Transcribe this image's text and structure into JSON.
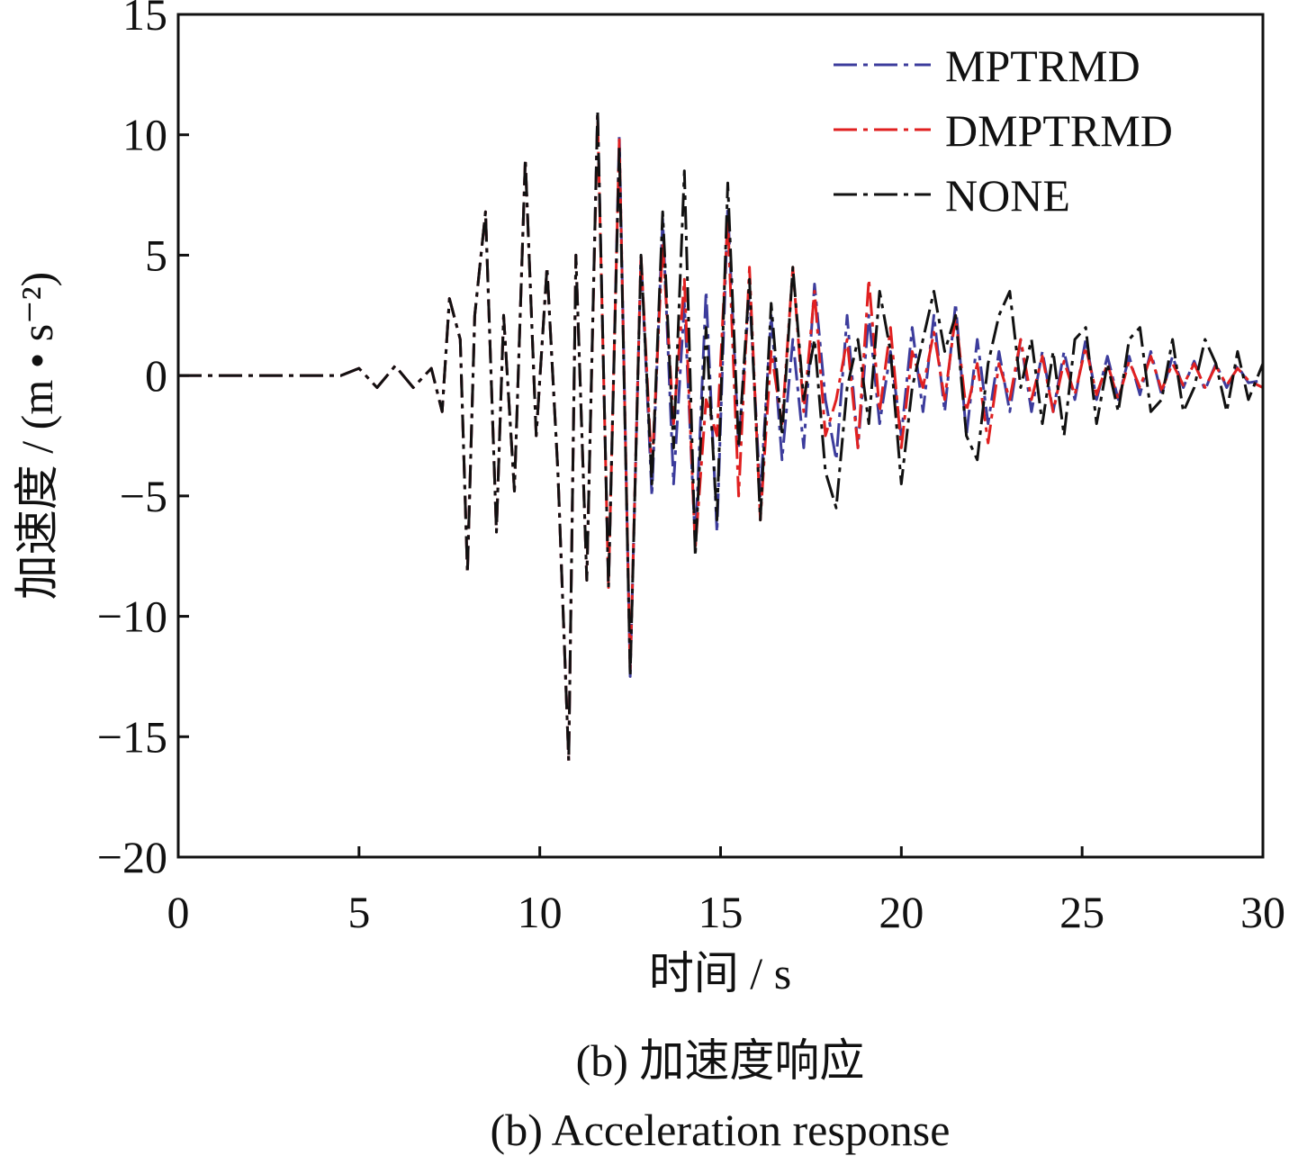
{
  "chart_data": {
    "type": "line",
    "xlabel": "时间 / s",
    "ylabel": "加速度 / (m • s⁻²)",
    "xlim": [
      0,
      30
    ],
    "ylim": [
      -20,
      15
    ],
    "xticks": [
      0,
      5,
      10,
      15,
      20,
      25,
      30
    ],
    "yticks": [
      15,
      10,
      5,
      0,
      -5,
      -10,
      -15,
      -20
    ],
    "xtick_labels": [
      "0",
      "5",
      "10",
      "15",
      "20",
      "25",
      "30"
    ],
    "ytick_labels": [
      "15",
      "10",
      "5",
      "0",
      "−5",
      "−10",
      "−15",
      "−20"
    ],
    "grid": false,
    "legend_position": "top-right",
    "series": [
      {
        "name": "MPTRMD",
        "color": "#3c3c9c",
        "x": [
          0,
          4.5,
          5.0,
          5.5,
          6.0,
          6.5,
          7.0,
          7.3,
          7.5,
          7.8,
          8.0,
          8.2,
          8.5,
          8.8,
          9.0,
          9.3,
          9.6,
          9.9,
          10.2,
          10.5,
          10.8,
          11.0,
          11.3,
          11.6,
          11.9,
          12.2,
          12.5,
          12.8,
          13.1,
          13.4,
          13.7,
          14.0,
          14.3,
          14.6,
          14.9,
          15.2,
          15.5,
          15.8,
          16.1,
          16.4,
          16.7,
          17.0,
          17.3,
          17.6,
          17.9,
          18.2,
          18.5,
          18.8,
          19.1,
          19.4,
          19.7,
          20.0,
          20.3,
          20.6,
          20.9,
          21.2,
          21.5,
          21.8,
          22.1,
          22.4,
          22.7,
          23.0,
          23.3,
          23.6,
          23.9,
          24.2,
          24.5,
          24.8,
          25.1,
          25.4,
          25.7,
          26.0,
          26.3,
          26.6,
          26.9,
          27.2,
          27.5,
          27.8,
          28.1,
          28.4,
          28.7,
          29.0,
          29.3,
          29.6,
          30.0
        ],
        "y": [
          0,
          0,
          0.3,
          -0.5,
          0.4,
          -0.5,
          0.3,
          -1.5,
          3.2,
          1.5,
          -8.2,
          2.5,
          6.8,
          -6.5,
          2.5,
          -4.8,
          9.0,
          -2.5,
          4.5,
          -4.0,
          -16.0,
          5.0,
          -8.5,
          11.0,
          -8.8,
          10.0,
          -12.5,
          5.0,
          -5.0,
          6.5,
          -4.5,
          3.0,
          -7.0,
          3.5,
          -6.5,
          7.0,
          -3.0,
          3.5,
          -5.0,
          2.5,
          -3.5,
          1.5,
          -3.0,
          3.8,
          -1.0,
          -3.5,
          2.5,
          -3.0,
          2.5,
          -2.0,
          1.0,
          -2.5,
          2.0,
          -1.5,
          2.5,
          -1.5,
          3.0,
          -2.5,
          1.5,
          -2.0,
          1.0,
          -1.5,
          1.5,
          -1.5,
          1.0,
          -1.5,
          1.0,
          -1.0,
          1.5,
          -1.0,
          0.8,
          -1.0,
          0.8,
          -0.8,
          1.0,
          -0.8,
          0.8,
          -0.5,
          0.6,
          -0.6,
          0.5,
          -0.5,
          0.4,
          -0.3,
          -0.2
        ]
      },
      {
        "name": "DMPTRMD",
        "color": "#e02020",
        "x": [
          0,
          4.5,
          5.0,
          5.5,
          6.0,
          6.5,
          7.0,
          7.3,
          7.5,
          7.8,
          8.0,
          8.2,
          8.5,
          8.8,
          9.0,
          9.3,
          9.6,
          9.9,
          10.2,
          10.5,
          10.8,
          11.0,
          11.3,
          11.6,
          11.9,
          12.2,
          12.5,
          12.8,
          13.1,
          13.4,
          13.7,
          14.0,
          14.3,
          14.6,
          14.9,
          15.2,
          15.5,
          15.8,
          16.1,
          16.4,
          16.7,
          17.0,
          17.3,
          17.6,
          17.9,
          18.2,
          18.5,
          18.8,
          19.1,
          19.4,
          19.7,
          20.0,
          20.3,
          20.6,
          20.9,
          21.2,
          21.5,
          21.8,
          22.1,
          22.4,
          22.7,
          23.0,
          23.3,
          23.6,
          23.9,
          24.2,
          24.5,
          24.8,
          25.1,
          25.4,
          25.7,
          26.0,
          26.3,
          26.6,
          26.9,
          27.2,
          27.5,
          27.8,
          28.1,
          28.4,
          28.7,
          29.0,
          29.3,
          29.6,
          30.0
        ],
        "y": [
          0,
          0,
          0.3,
          -0.5,
          0.4,
          -0.5,
          0.3,
          -1.5,
          3.2,
          1.5,
          -8.2,
          2.5,
          6.8,
          -6.5,
          2.5,
          -4.8,
          9.0,
          -2.5,
          4.5,
          -4.0,
          -16.0,
          5.0,
          -8.5,
          10.8,
          -8.8,
          9.8,
          -12.3,
          5.0,
          -4.0,
          5.5,
          -2.0,
          4.0,
          -7.2,
          -1.0,
          -2.5,
          6.5,
          -5.0,
          4.5,
          -6.0,
          1.0,
          -2.0,
          4.5,
          -1.5,
          3.5,
          -2.5,
          -1.0,
          1.5,
          -3.0,
          4.0,
          -1.5,
          2.0,
          -3.0,
          1.0,
          -0.5,
          1.8,
          -1.0,
          2.5,
          -1.5,
          0.5,
          -2.8,
          0.5,
          -1.0,
          1.5,
          -1.0,
          0.8,
          -1.5,
          0.6,
          -0.8,
          1.2,
          -0.8,
          0.5,
          -1.0,
          0.6,
          -0.5,
          0.8,
          -0.6,
          0.5,
          -0.4,
          0.5,
          -0.5,
          0.4,
          -0.4,
          0.3,
          -0.2,
          -0.5
        ]
      },
      {
        "name": "NONE",
        "color": "#111111",
        "x": [
          0,
          4.5,
          5.0,
          5.5,
          6.0,
          6.5,
          7.0,
          7.3,
          7.5,
          7.8,
          8.0,
          8.2,
          8.5,
          8.8,
          9.0,
          9.3,
          9.6,
          9.9,
          10.2,
          10.5,
          10.8,
          11.0,
          11.3,
          11.6,
          11.9,
          12.2,
          12.5,
          12.8,
          13.1,
          13.4,
          13.7,
          14.0,
          14.3,
          14.6,
          14.9,
          15.2,
          15.5,
          15.8,
          16.1,
          16.4,
          16.7,
          17.0,
          17.3,
          17.6,
          17.9,
          18.2,
          18.5,
          18.8,
          19.1,
          19.4,
          19.7,
          20.0,
          20.3,
          20.6,
          20.9,
          21.2,
          21.5,
          21.8,
          22.1,
          22.4,
          22.7,
          23.0,
          23.3,
          23.6,
          23.9,
          24.2,
          24.5,
          24.8,
          25.1,
          25.4,
          25.7,
          26.0,
          26.3,
          26.6,
          26.9,
          27.2,
          27.5,
          27.8,
          28.1,
          28.4,
          28.7,
          29.0,
          29.3,
          29.6,
          30.0
        ],
        "y": [
          0,
          0,
          0.3,
          -0.5,
          0.4,
          -0.5,
          0.3,
          -1.5,
          3.2,
          1.5,
          -8.2,
          2.5,
          6.8,
          -6.5,
          2.5,
          -4.8,
          9.0,
          -2.5,
          4.5,
          -4.0,
          -16.0,
          5.0,
          -8.5,
          11.0,
          -8.8,
          9.5,
          -12.5,
          5.0,
          -4.5,
          6.8,
          -3.0,
          8.5,
          -7.5,
          2.0,
          -6.0,
          8.0,
          -3.0,
          4.0,
          -6.0,
          3.0,
          -2.5,
          4.5,
          -1.0,
          1.5,
          -4.0,
          -5.5,
          -0.5,
          1.5,
          -2.0,
          3.5,
          1.0,
          -4.5,
          -0.5,
          1.5,
          3.5,
          1.0,
          2.5,
          -2.5,
          -3.5,
          0.5,
          2.5,
          3.5,
          -0.5,
          1.5,
          -2.0,
          1.0,
          -2.5,
          1.5,
          2.0,
          -2.0,
          0.5,
          -1.5,
          1.5,
          2.0,
          -1.5,
          -1.0,
          1.5,
          -1.5,
          -0.5,
          1.5,
          0.5,
          -1.5,
          1.0,
          -1.0,
          0.5
        ]
      }
    ]
  },
  "captions": {
    "zh": "(b) 加速度响应",
    "en": "(b) Acceleration response"
  }
}
